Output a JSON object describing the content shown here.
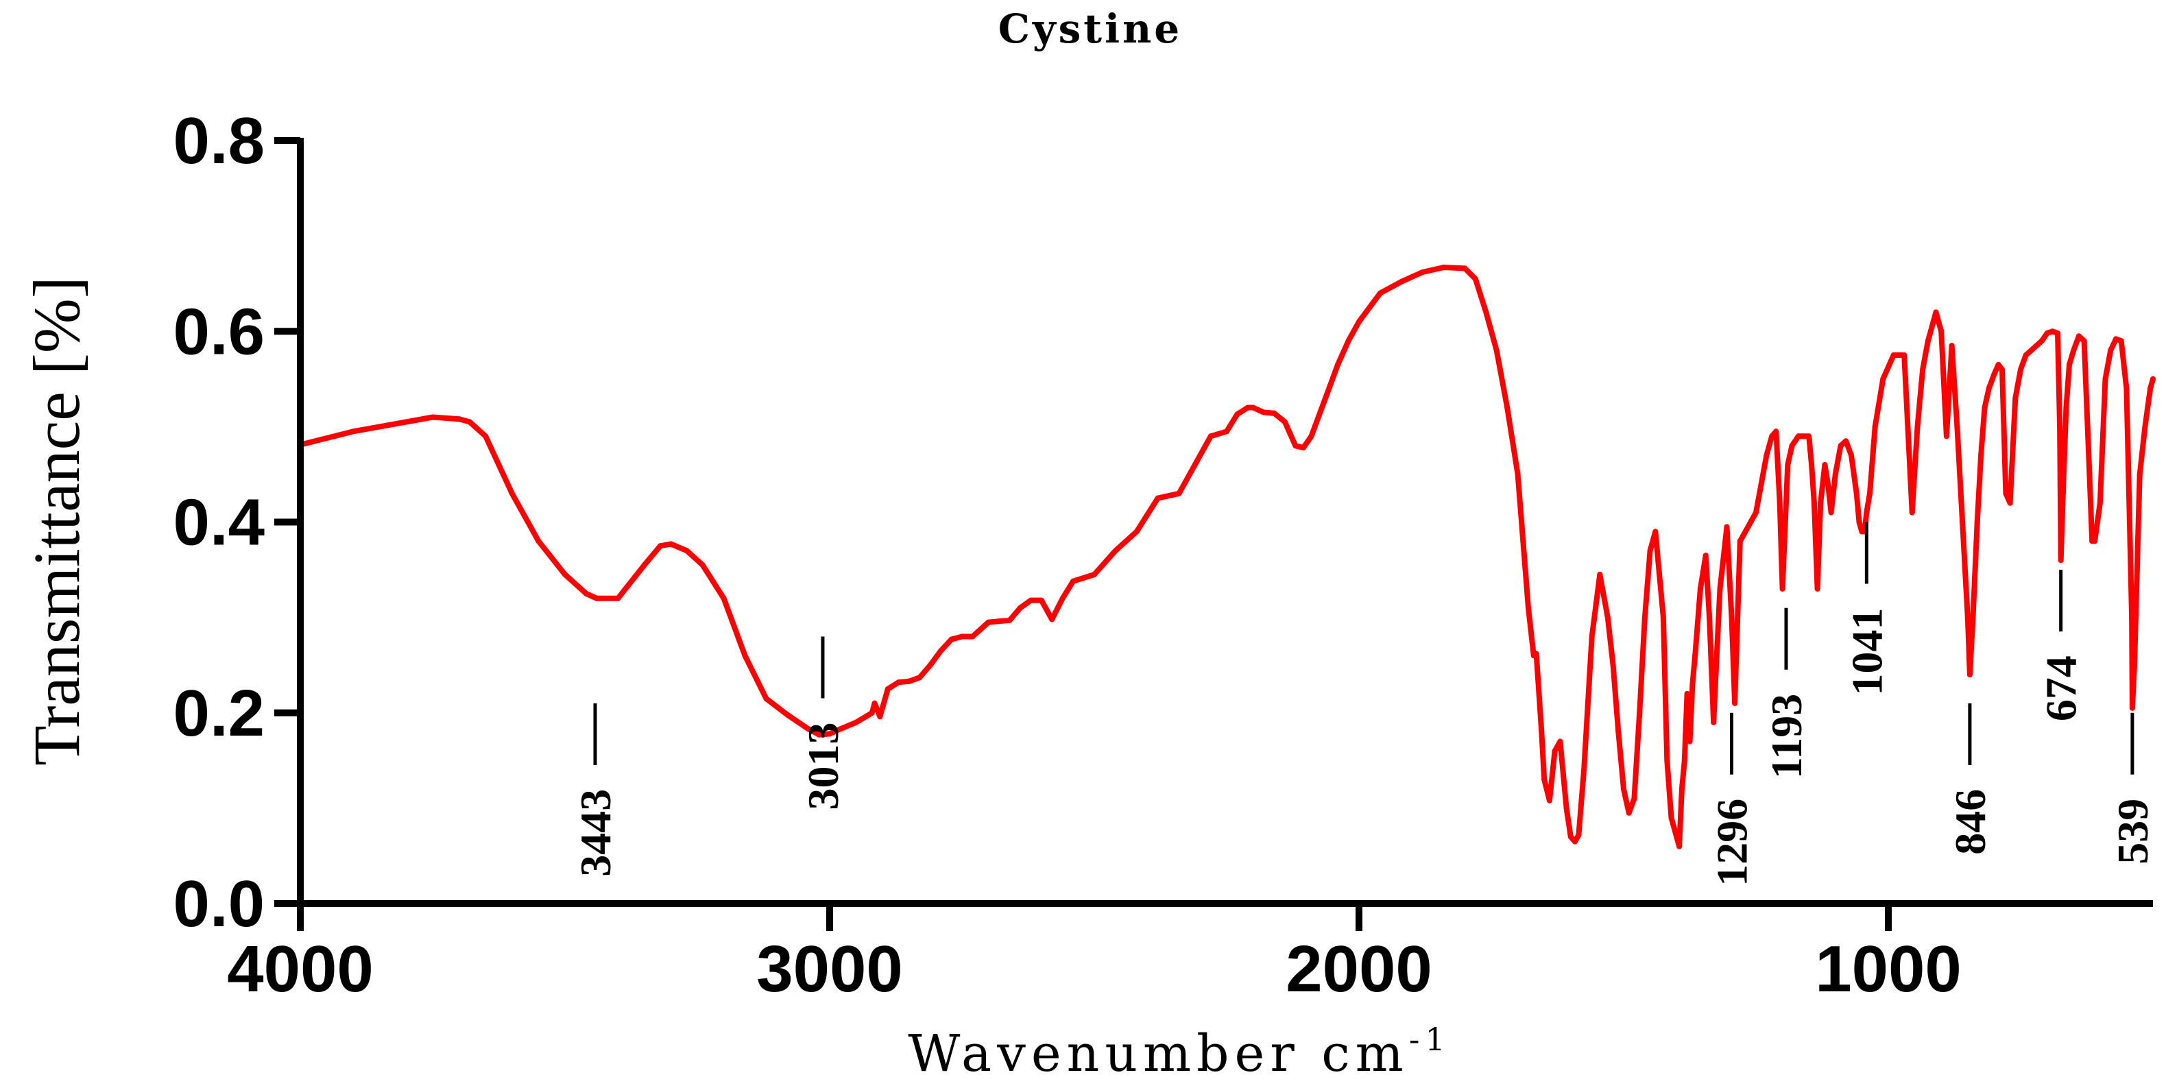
{
  "chart_data": {
    "type": "line",
    "title": "Cystine",
    "xlabel": "Wavenumber cm",
    "xlabel_sup": "-1",
    "ylabel": "Transmittance [%]",
    "xlim": [
      4000,
      500
    ],
    "ylim": [
      0.0,
      0.8
    ],
    "x_ticks": [
      {
        "value": 4000,
        "label": "4000"
      },
      {
        "value": 3000,
        "label": "3000"
      },
      {
        "value": 2000,
        "label": "2000"
      },
      {
        "value": 1000,
        "label": "1000"
      }
    ],
    "y_ticks": [
      {
        "value": 0.0,
        "label": "0.0"
      },
      {
        "value": 0.2,
        "label": "0.2"
      },
      {
        "value": 0.4,
        "label": "0.4"
      },
      {
        "value": 0.6,
        "label": "0.6"
      },
      {
        "value": 0.8,
        "label": "0.8"
      }
    ],
    "grid": false,
    "line_color": "#ff0000",
    "series": [
      {
        "x": [
          4000,
          3900,
          3800,
          3750,
          3700,
          3680,
          3650,
          3600,
          3550,
          3500,
          3460,
          3440,
          3400,
          3350,
          3320,
          3300,
          3270,
          3240,
          3200,
          3160,
          3120,
          3080,
          3040,
          3020,
          3000,
          2980,
          2950,
          2920,
          2915,
          2905,
          2890,
          2870,
          2850,
          2830,
          2810,
          2790,
          2770,
          2750,
          2730,
          2700,
          2680,
          2660,
          2640,
          2620,
          2600,
          2580,
          2560,
          2540,
          2500,
          2460,
          2420,
          2380,
          2340,
          2300,
          2280,
          2250,
          2230,
          2210,
          2200,
          2180,
          2160,
          2140,
          2120,
          2105,
          2090,
          2080,
          2060,
          2040,
          2020,
          2000,
          1960,
          1920,
          1880,
          1840,
          1800,
          1780,
          1760,
          1740,
          1720,
          1700,
          1690,
          1680,
          1670,
          1665,
          1655,
          1650,
          1640,
          1630,
          1620,
          1608,
          1600,
          1592,
          1585,
          1575,
          1560,
          1545,
          1530,
          1520,
          1510,
          1500,
          1490,
          1480,
          1470,
          1460,
          1450,
          1440,
          1425,
          1418,
          1410,
          1400,
          1395,
          1390,
          1385,
          1380,
          1375,
          1370,
          1365,
          1355,
          1345,
          1338,
          1330,
          1325,
          1318,
          1310,
          1305,
          1296,
          1290,
          1280,
          1270,
          1260,
          1250,
          1240,
          1230,
          1220,
          1212,
          1205,
          1200,
          1190,
          1182,
          1170,
          1160,
          1150,
          1145,
          1140,
          1134,
          1128,
          1120,
          1114,
          1108,
          1100,
          1090,
          1080,
          1070,
          1060,
          1055,
          1050,
          1045,
          1041,
          1035,
          1025,
          1010,
          990,
          970,
          955,
          945,
          940,
          935,
          930,
          925,
          920,
          915,
          910,
          900,
          890,
          880,
          870,
          860,
          850,
          846,
          840,
          832,
          825,
          818,
          810,
          800,
          792,
          785,
          778,
          770,
          760,
          750,
          740,
          730,
          720,
          710,
          700,
          690,
          680,
          676,
          674,
          670,
          664,
          658,
          650,
          640,
          630,
          625,
          620,
          615,
          610,
          600,
          590,
          580,
          570,
          560,
          550,
          545,
          540,
          539,
          535,
          530,
          525,
          515,
          505,
          500
        ],
        "y": [
          0.481,
          0.495,
          0.505,
          0.51,
          0.508,
          0.505,
          0.49,
          0.43,
          0.38,
          0.345,
          0.325,
          0.32,
          0.32,
          0.355,
          0.375,
          0.377,
          0.37,
          0.355,
          0.32,
          0.26,
          0.215,
          0.198,
          0.183,
          0.177,
          0.178,
          0.183,
          0.19,
          0.2,
          0.21,
          0.196,
          0.225,
          0.232,
          0.233,
          0.237,
          0.25,
          0.265,
          0.277,
          0.28,
          0.28,
          0.295,
          0.296,
          0.297,
          0.31,
          0.318,
          0.318,
          0.298,
          0.32,
          0.338,
          0.345,
          0.37,
          0.39,
          0.425,
          0.43,
          0.47,
          0.49,
          0.495,
          0.513,
          0.52,
          0.52,
          0.515,
          0.514,
          0.505,
          0.48,
          0.478,
          0.49,
          0.505,
          0.535,
          0.565,
          0.59,
          0.61,
          0.64,
          0.652,
          0.662,
          0.667,
          0.666,
          0.655,
          0.62,
          0.58,
          0.52,
          0.45,
          0.38,
          0.31,
          0.26,
          0.262,
          0.18,
          0.13,
          0.108,
          0.16,
          0.17,
          0.1,
          0.07,
          0.065,
          0.072,
          0.14,
          0.28,
          0.345,
          0.3,
          0.25,
          0.18,
          0.12,
          0.095,
          0.11,
          0.2,
          0.3,
          0.37,
          0.39,
          0.3,
          0.15,
          0.09,
          0.07,
          0.06,
          0.12,
          0.15,
          0.22,
          0.17,
          0.23,
          0.26,
          0.33,
          0.365,
          0.3,
          0.19,
          0.25,
          0.33,
          0.37,
          0.395,
          0.3,
          0.21,
          0.38,
          0.39,
          0.4,
          0.41,
          0.44,
          0.47,
          0.49,
          0.495,
          0.42,
          0.33,
          0.46,
          0.48,
          0.49,
          0.49,
          0.49,
          0.46,
          0.42,
          0.33,
          0.42,
          0.46,
          0.44,
          0.41,
          0.45,
          0.48,
          0.485,
          0.47,
          0.43,
          0.4,
          0.39,
          0.39,
          0.41,
          0.43,
          0.5,
          0.55,
          0.575,
          0.575,
          0.41,
          0.5,
          0.53,
          0.56,
          0.575,
          0.59,
          0.6,
          0.61,
          0.62,
          0.6,
          0.49,
          0.585,
          0.5,
          0.4,
          0.3,
          0.24,
          0.3,
          0.4,
          0.47,
          0.52,
          0.54,
          0.555,
          0.565,
          0.56,
          0.43,
          0.42,
          0.53,
          0.56,
          0.575,
          0.58,
          0.585,
          0.59,
          0.598,
          0.6,
          0.598,
          0.5,
          0.36,
          0.43,
          0.52,
          0.565,
          0.58,
          0.595,
          0.59,
          0.52,
          0.45,
          0.38,
          0.38,
          0.42,
          0.55,
          0.58,
          0.592,
          0.59,
          0.54,
          0.42,
          0.3,
          0.205,
          0.25,
          0.35,
          0.45,
          0.5,
          0.54,
          0.55
        ]
      }
    ],
    "annotations": [
      {
        "x": 3443,
        "y": 0.21,
        "label": "3443"
      },
      {
        "x": 3013,
        "y": 0.28,
        "label": "3013"
      },
      {
        "x": 1296,
        "y": 0.2,
        "label": "1296"
      },
      {
        "x": 1193,
        "y": 0.31,
        "label": "1193"
      },
      {
        "x": 1041,
        "y": 0.4,
        "label": "1041"
      },
      {
        "x": 846,
        "y": 0.21,
        "label": "846"
      },
      {
        "x": 674,
        "y": 0.35,
        "label": "674"
      },
      {
        "x": 539,
        "y": 0.2,
        "label": "539"
      }
    ]
  }
}
